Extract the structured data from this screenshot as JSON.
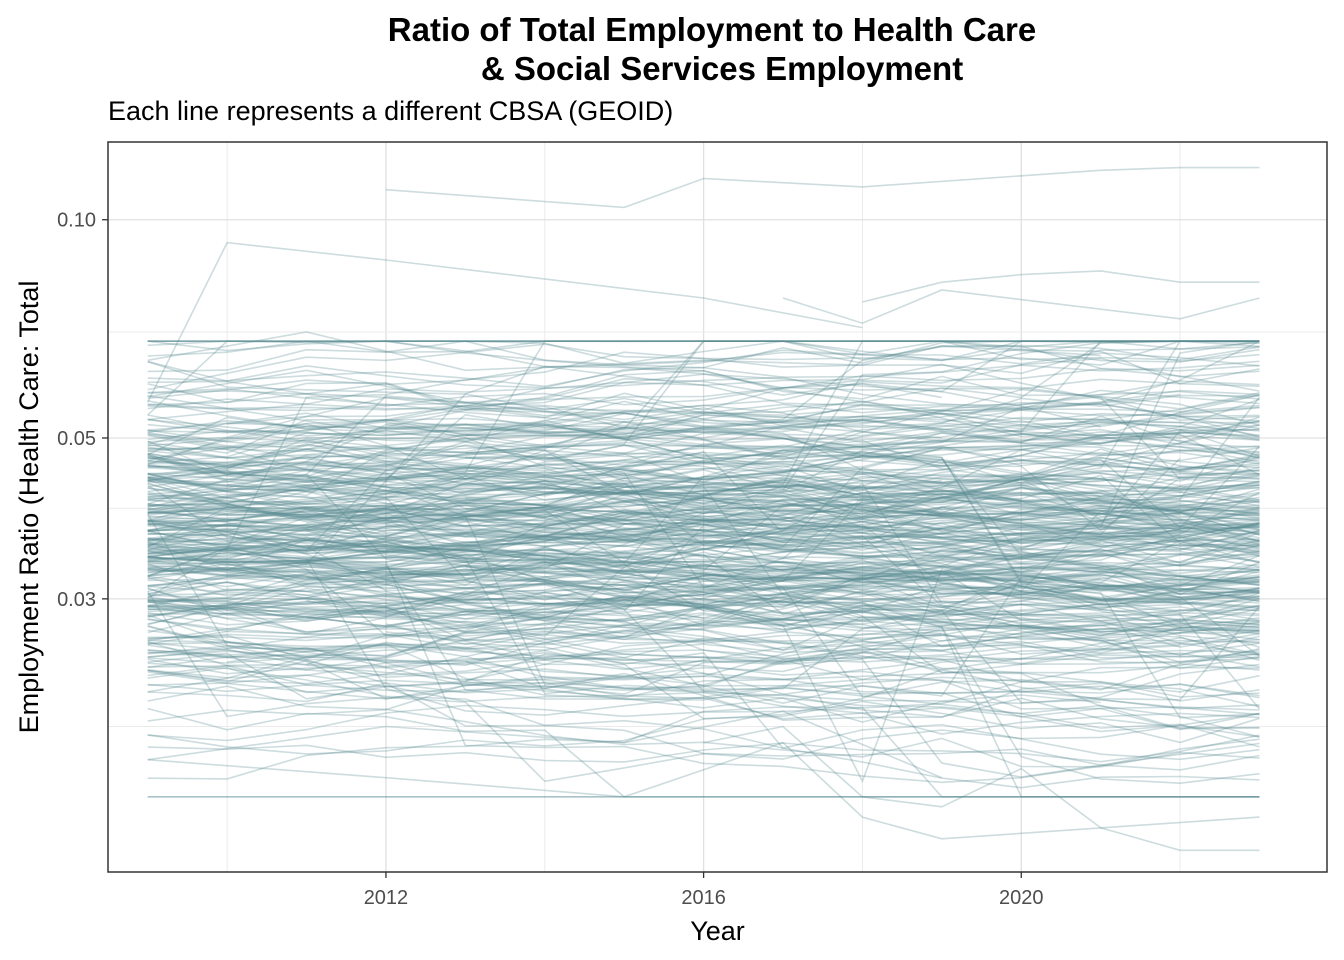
{
  "chart_data": {
    "type": "line",
    "title_line1": "Ratio of Total Employment to Health Care",
    "title_line2": "& Social Services Employment",
    "subtitle": "Each line represents a different CBSA (GEOID)",
    "xlabel": "Year",
    "ylabel": "Employment Ratio (Health Care: Total",
    "x_scale": "linear",
    "y_scale": "log",
    "xlim": [
      2009,
      2023
    ],
    "ylim": [
      0.0126,
      0.128
    ],
    "x_ticks": [
      2012,
      2016,
      2020
    ],
    "x_tick_labels": [
      "2012",
      "2016",
      "2020"
    ],
    "y_ticks": [
      0.03,
      0.05,
      0.1
    ],
    "y_tick_labels": [
      "0.03",
      "0.05",
      "0.10"
    ],
    "line_color": "#5a8b93",
    "line_opacity": 0.3,
    "grid": true,
    "legend": "none",
    "series_count": 360,
    "series_note_text": "",
    "highlight_series": [
      {
        "x": [
          2012,
          2015,
          2016,
          2018,
          2021,
          2022,
          2023
        ],
        "y": [
          0.11,
          0.104,
          0.114,
          0.111,
          0.117,
          0.118,
          0.118
        ]
      },
      {
        "x": [
          2009,
          2010,
          2012,
          2016,
          2018
        ],
        "y": [
          0.056,
          0.093,
          0.088,
          0.078,
          0.071
        ]
      },
      {
        "x": [
          2018,
          2019,
          2020,
          2021,
          2022,
          2023
        ],
        "y": [
          0.077,
          0.082,
          0.084,
          0.085,
          0.082,
          0.082
        ]
      },
      {
        "x": [
          2017,
          2018,
          2019,
          2022,
          2023
        ],
        "y": [
          0.078,
          0.072,
          0.08,
          0.073,
          0.078
        ]
      },
      {
        "x": [
          2009,
          2011,
          2013,
          2016,
          2018,
          2019,
          2021
        ],
        "y": [
          0.064,
          0.07,
          0.062,
          0.064,
          0.063,
          0.067,
          0.065
        ]
      },
      {
        "x": [
          2009,
          2012,
          2015,
          2017,
          2019
        ],
        "y": [
          0.018,
          0.02,
          0.019,
          0.021,
          0.017
        ]
      },
      {
        "x": [
          2009,
          2012,
          2015,
          2017,
          2018,
          2019,
          2023
        ],
        "y": [
          0.018,
          0.017,
          0.016,
          0.019,
          0.015,
          0.014,
          0.015
        ]
      },
      {
        "x": [
          2016,
          2017,
          2018,
          2019,
          2020,
          2021,
          2022,
          2023
        ],
        "y": [
          0.019,
          0.02,
          0.016,
          0.0155,
          0.0175,
          0.0145,
          0.0135,
          0.0135
        ]
      },
      {
        "x": [
          2009,
          2011,
          2013,
          2015,
          2016,
          2017,
          2019
        ],
        "y": [
          0.057,
          0.062,
          0.056,
          0.053,
          0.055,
          0.052,
          0.05
        ]
      }
    ]
  }
}
